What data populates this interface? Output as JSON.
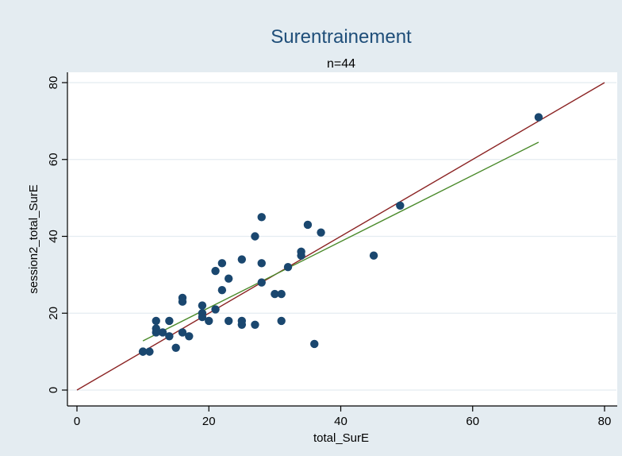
{
  "chart_data": {
    "type": "scatter",
    "title": "Surentrainement",
    "subtitle": "n=44",
    "xlabel": "total_SurE",
    "ylabel": "session2_total_SurE",
    "xlim": [
      0,
      80
    ],
    "ylim": [
      0,
      80
    ],
    "xticks": [
      0,
      20,
      40,
      60,
      80
    ],
    "yticks": [
      0,
      20,
      40,
      60,
      80
    ],
    "xtick_labels": [
      "0",
      "20",
      "40",
      "60",
      "80"
    ],
    "ytick_labels": [
      "0",
      "20",
      "40",
      "60",
      "80"
    ],
    "grid": "horizontal",
    "points": [
      {
        "x": 10,
        "y": 10
      },
      {
        "x": 11,
        "y": 10
      },
      {
        "x": 12,
        "y": 18
      },
      {
        "x": 12,
        "y": 16
      },
      {
        "x": 12,
        "y": 15
      },
      {
        "x": 13,
        "y": 15
      },
      {
        "x": 14,
        "y": 18
      },
      {
        "x": 14,
        "y": 14
      },
      {
        "x": 15,
        "y": 11
      },
      {
        "x": 16,
        "y": 24
      },
      {
        "x": 16,
        "y": 23
      },
      {
        "x": 16,
        "y": 15
      },
      {
        "x": 17,
        "y": 14
      },
      {
        "x": 19,
        "y": 22
      },
      {
        "x": 19,
        "y": 20
      },
      {
        "x": 19,
        "y": 19
      },
      {
        "x": 20,
        "y": 18
      },
      {
        "x": 21,
        "y": 31
      },
      {
        "x": 21,
        "y": 21
      },
      {
        "x": 22,
        "y": 33
      },
      {
        "x": 22,
        "y": 26
      },
      {
        "x": 23,
        "y": 29
      },
      {
        "x": 23,
        "y": 18
      },
      {
        "x": 25,
        "y": 34
      },
      {
        "x": 25,
        "y": 18
      },
      {
        "x": 25,
        "y": 17
      },
      {
        "x": 27,
        "y": 40
      },
      {
        "x": 27,
        "y": 17
      },
      {
        "x": 28,
        "y": 45
      },
      {
        "x": 28,
        "y": 33
      },
      {
        "x": 28,
        "y": 28
      },
      {
        "x": 30,
        "y": 25
      },
      {
        "x": 31,
        "y": 25
      },
      {
        "x": 31,
        "y": 18
      },
      {
        "x": 32,
        "y": 32
      },
      {
        "x": 34,
        "y": 36
      },
      {
        "x": 34,
        "y": 35
      },
      {
        "x": 35,
        "y": 43
      },
      {
        "x": 36,
        "y": 12
      },
      {
        "x": 37,
        "y": 41
      },
      {
        "x": 45,
        "y": 35
      },
      {
        "x": 49,
        "y": 48
      },
      {
        "x": 70,
        "y": 71
      },
      {
        "x": 10,
        "y": 10
      }
    ],
    "lines": [
      {
        "kind": "identity",
        "color": "#8b2323",
        "x": [
          0,
          80
        ],
        "y": [
          0,
          80
        ]
      },
      {
        "kind": "fit",
        "color": "#4a8a2a",
        "x": [
          10,
          70
        ],
        "y": [
          12.8,
          64.5
        ]
      }
    ],
    "colors": {
      "background": "#e4ecf1",
      "title": "#1f4e79",
      "marker": "#1a476f"
    }
  }
}
